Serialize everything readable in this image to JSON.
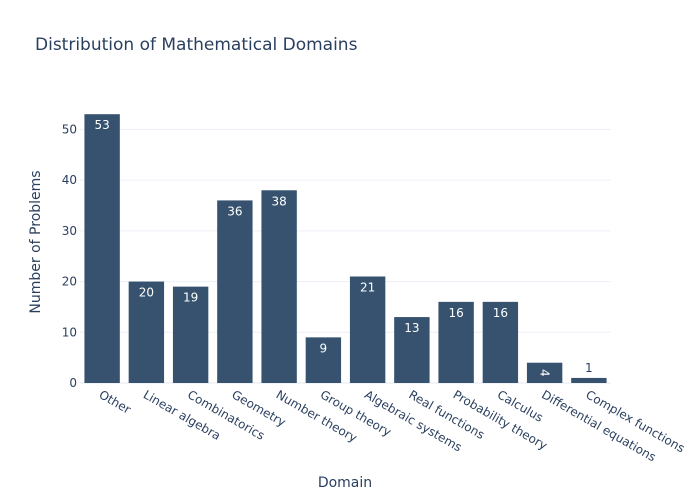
{
  "chart_data": {
    "type": "bar",
    "title": "Distribution of Mathematical Domains",
    "xlabel": "Domain",
    "ylabel": "Number of Problems",
    "categories": [
      "Other",
      "Linear algebra",
      "Combinatorics",
      "Geometry",
      "Number theory",
      "Group theory",
      "Algebraic systems",
      "Real functions",
      "Probability theory",
      "Calculus",
      "Differential equations",
      "Complex functions"
    ],
    "values": [
      53,
      20,
      19,
      36,
      38,
      9,
      21,
      13,
      16,
      16,
      4,
      1
    ],
    "yticks": [
      0,
      10,
      20,
      30,
      40,
      50
    ],
    "ylim": [
      0,
      55.8
    ],
    "grid": true,
    "bar_color": "#36526e",
    "text_color": "#2a3f5f",
    "grid_color": "#ebeff5"
  }
}
